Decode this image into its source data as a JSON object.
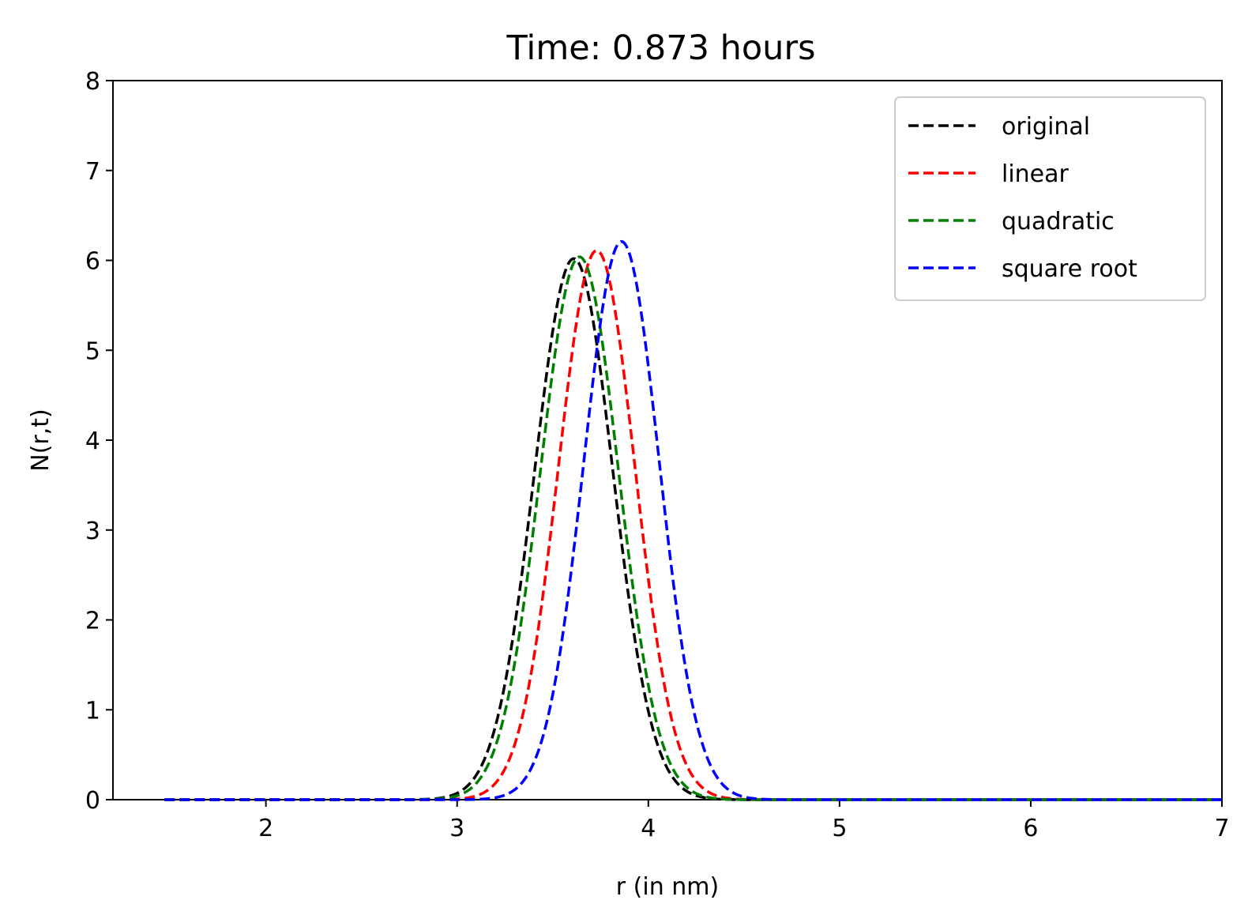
{
  "chart_data": {
    "type": "line",
    "title": "Time: 0.873 hours",
    "xlabel": "r (in nm)",
    "ylabel": "N(r,t)",
    "xlim": [
      1.2,
      7
    ],
    "ylim": [
      0,
      8
    ],
    "xticks": [
      2,
      3,
      4,
      5,
      6,
      7
    ],
    "yticks": [
      0,
      1,
      2,
      3,
      4,
      5,
      6,
      7,
      8
    ],
    "grid": false,
    "legend_position": "top-right",
    "line_style": "dashed",
    "x_start": 1.47,
    "x_end": 7.0,
    "series": [
      {
        "name": "original",
        "color": "#000000",
        "peak_x": 3.61,
        "peak_y": 6.02,
        "sigma": 0.205
      },
      {
        "name": "linear",
        "color": "#ff0000",
        "peak_x": 3.73,
        "peak_y": 6.11,
        "sigma": 0.2
      },
      {
        "name": "quadratic",
        "color": "#008000",
        "peak_x": 3.64,
        "peak_y": 6.04,
        "sigma": 0.204
      },
      {
        "name": "square root",
        "color": "#0000ff",
        "peak_x": 3.86,
        "peak_y": 6.21,
        "sigma": 0.197
      }
    ]
  }
}
